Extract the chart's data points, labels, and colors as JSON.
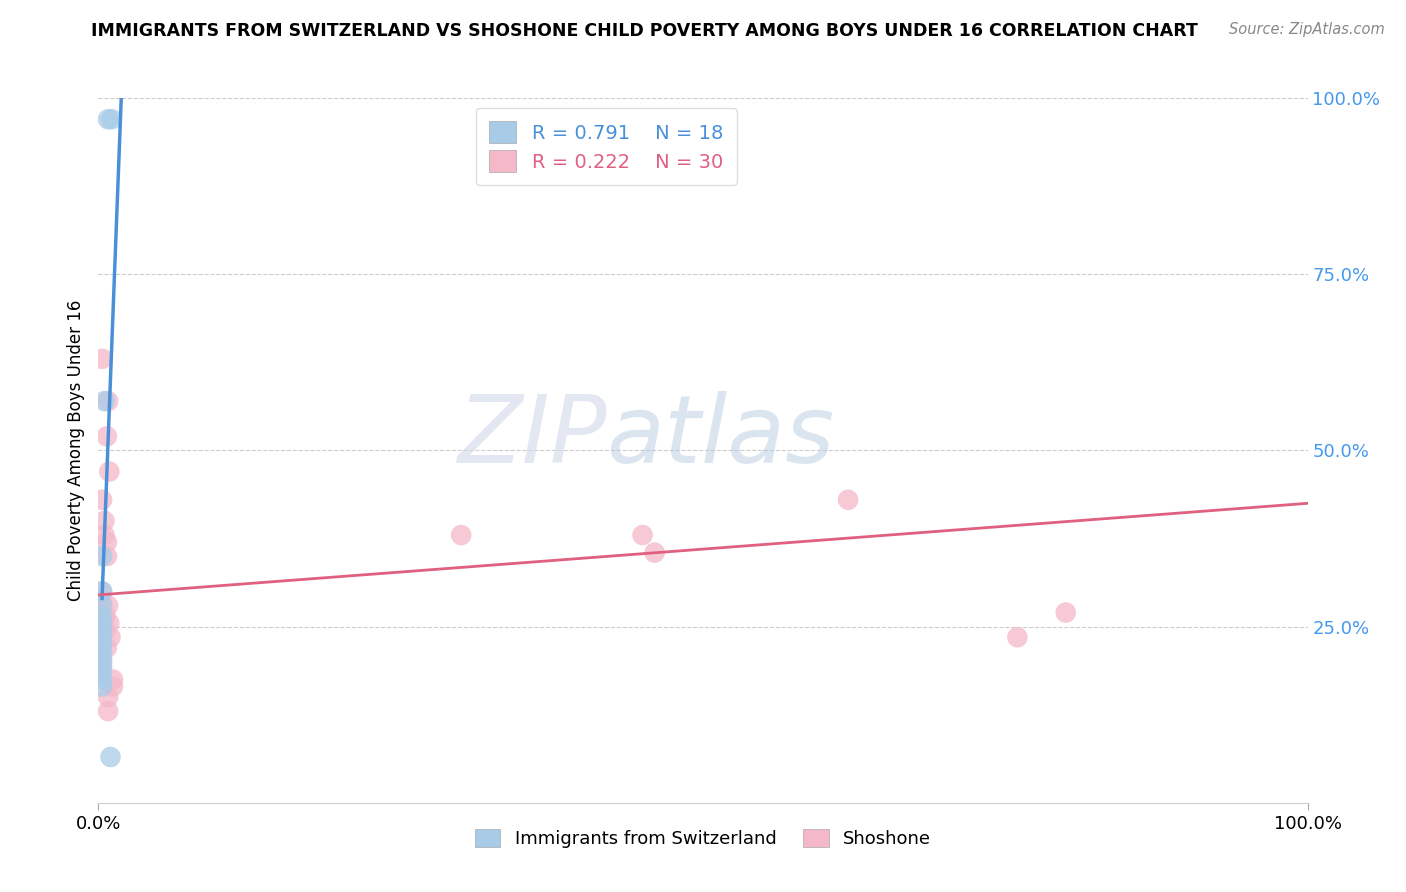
{
  "title": "IMMIGRANTS FROM SWITZERLAND VS SHOSHONE CHILD POVERTY AMONG BOYS UNDER 16 CORRELATION CHART",
  "source": "Source: ZipAtlas.com",
  "ylabel_label": "Child Poverty Among Boys Under 16",
  "legend_blue_R": "0.791",
  "legend_blue_N": "18",
  "legend_pink_R": "0.222",
  "legend_pink_N": "30",
  "blue_color": "#a8cce8",
  "pink_color": "#f4b8c8",
  "blue_line_color": "#4a90d9",
  "pink_line_color": "#e06080",
  "blue_scatter": [
    [
      0.008,
      0.97
    ],
    [
      0.011,
      0.97
    ],
    [
      0.005,
      0.57
    ],
    [
      0.003,
      0.35
    ],
    [
      0.003,
      0.3
    ],
    [
      0.003,
      0.28
    ],
    [
      0.003,
      0.265
    ],
    [
      0.003,
      0.255
    ],
    [
      0.003,
      0.245
    ],
    [
      0.003,
      0.235
    ],
    [
      0.003,
      0.225
    ],
    [
      0.003,
      0.215
    ],
    [
      0.003,
      0.205
    ],
    [
      0.003,
      0.195
    ],
    [
      0.003,
      0.185
    ],
    [
      0.003,
      0.175
    ],
    [
      0.003,
      0.165
    ],
    [
      0.01,
      0.065
    ]
  ],
  "pink_scatter": [
    [
      0.003,
      0.63
    ],
    [
      0.008,
      0.57
    ],
    [
      0.007,
      0.52
    ],
    [
      0.009,
      0.47
    ],
    [
      0.003,
      0.43
    ],
    [
      0.005,
      0.4
    ],
    [
      0.005,
      0.38
    ],
    [
      0.007,
      0.37
    ],
    [
      0.007,
      0.35
    ],
    [
      0.003,
      0.3
    ],
    [
      0.003,
      0.285
    ],
    [
      0.008,
      0.28
    ],
    [
      0.003,
      0.27
    ],
    [
      0.006,
      0.265
    ],
    [
      0.009,
      0.255
    ],
    [
      0.006,
      0.245
    ],
    [
      0.01,
      0.235
    ],
    [
      0.007,
      0.22
    ],
    [
      0.003,
      0.2
    ],
    [
      0.003,
      0.19
    ],
    [
      0.012,
      0.175
    ],
    [
      0.012,
      0.165
    ],
    [
      0.008,
      0.15
    ],
    [
      0.008,
      0.13
    ],
    [
      0.3,
      0.38
    ],
    [
      0.45,
      0.38
    ],
    [
      0.46,
      0.355
    ],
    [
      0.62,
      0.43
    ],
    [
      0.76,
      0.235
    ],
    [
      0.8,
      0.27
    ]
  ],
  "blue_line_x": [
    0.003,
    0.02
  ],
  "blue_line_y": [
    0.29,
    1.05
  ],
  "pink_line_x": [
    0.0,
    1.0
  ],
  "pink_line_y": [
    0.295,
    0.425
  ],
  "xlim": [
    0.0,
    1.0
  ],
  "ylim": [
    0.0,
    1.0
  ],
  "watermark_zip": "ZIP",
  "watermark_atlas": "atlas",
  "legend_label_blue": "Immigrants from Switzerland",
  "legend_label_pink": "Shoshone"
}
